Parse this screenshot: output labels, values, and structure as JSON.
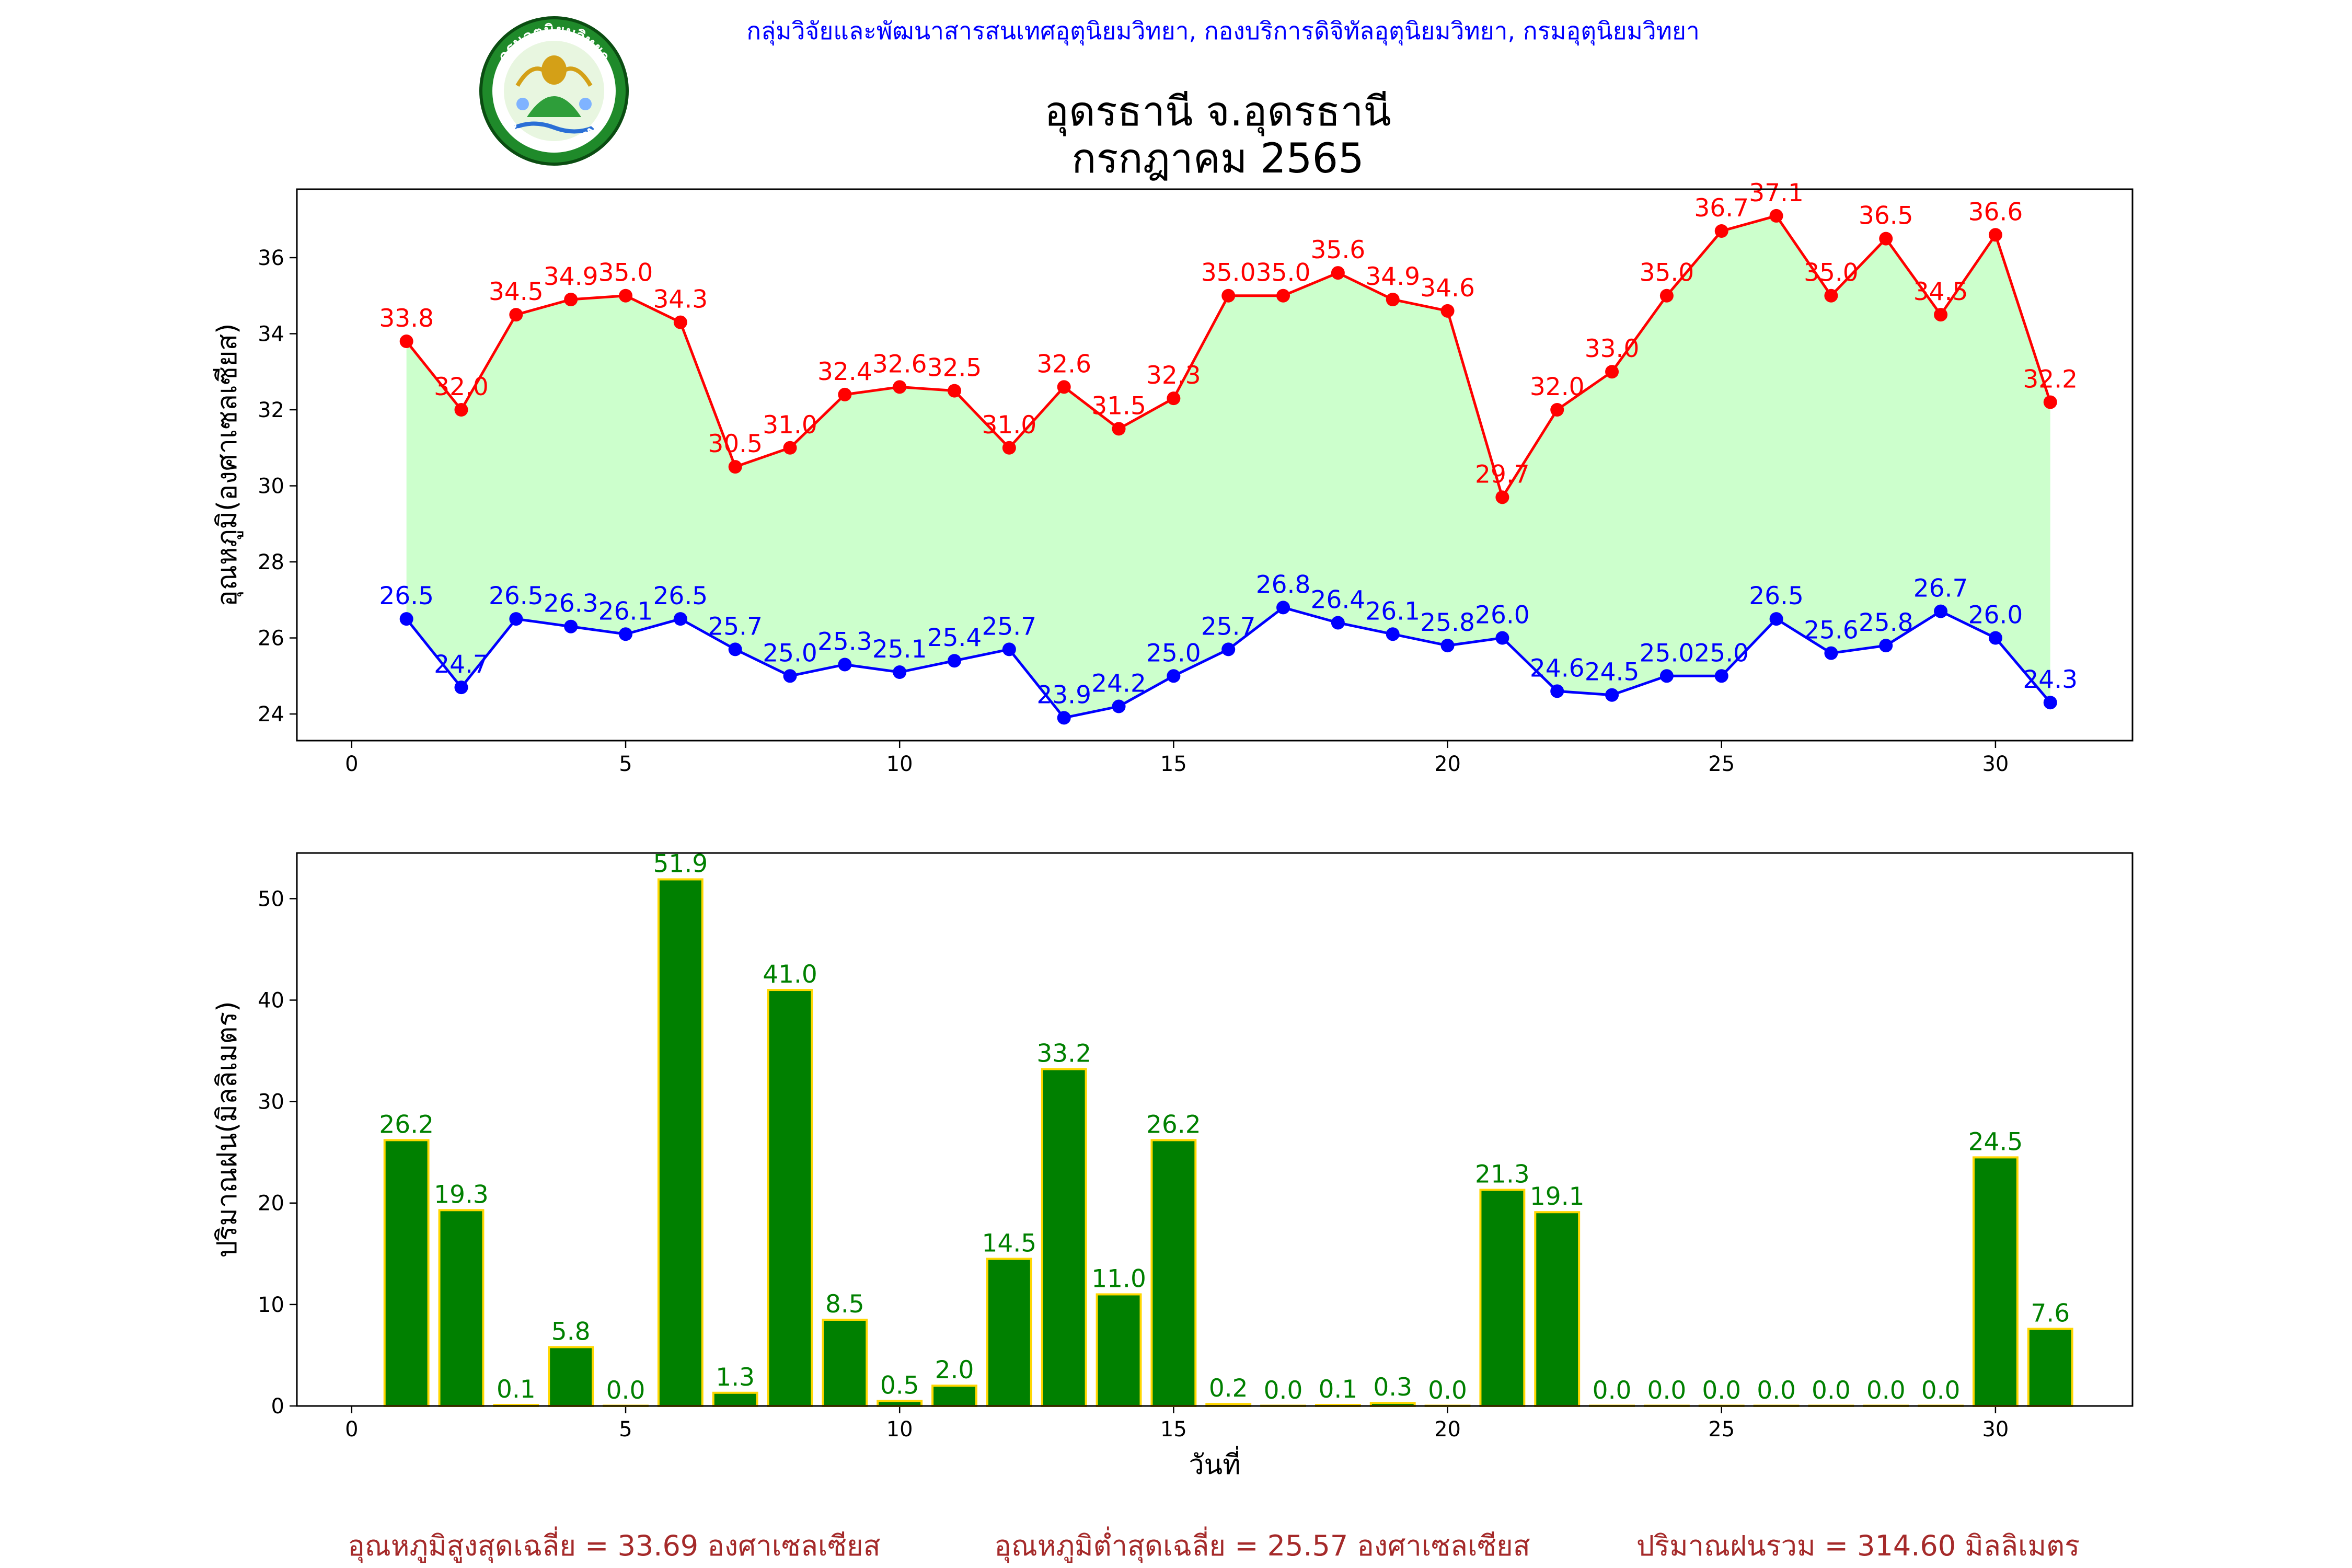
{
  "header": {
    "credit": "กลุ่มวิจัยและพัฒนาสารสนเทศอุตุนิยมวิทยา, กองบริการดิจิทัลอุตุนิยมวิทยา, กรมอุตุนิยมวิทยา",
    "credit_color": "#0000ff",
    "logo": {
      "icon": "meteorological-department-seal-icon",
      "top_text": "กรมอุตุนิยมวิทยา",
      "bottom_text": "METEOROLOGICAL DEPARTMENT"
    }
  },
  "title": {
    "line1": "อุดรธานี จ.อุดรธานี",
    "line2": "กรกฎาคม 2565"
  },
  "chart_data": [
    {
      "type": "line",
      "ylabel": "อุณหภูมิ(องศาเซลเซียส)",
      "xlim": [
        -1,
        32.5
      ],
      "ylim": [
        23.3,
        37.8
      ],
      "xticks": [
        0,
        5,
        10,
        15,
        20,
        25,
        30
      ],
      "yticks": [
        24,
        26,
        28,
        30,
        32,
        34,
        36
      ],
      "grid": false,
      "fill_between_color": "#ccffcc",
      "x": [
        1,
        2,
        3,
        4,
        5,
        6,
        7,
        8,
        9,
        10,
        11,
        12,
        13,
        14,
        15,
        16,
        17,
        18,
        19,
        20,
        21,
        22,
        23,
        24,
        25,
        26,
        27,
        28,
        29,
        30,
        31
      ],
      "series": [
        {
          "key": "max",
          "color": "#ff0000",
          "values": [
            33.8,
            32.0,
            34.5,
            34.9,
            35.0,
            34.3,
            30.5,
            31.0,
            32.4,
            32.6,
            32.5,
            31.0,
            32.6,
            31.5,
            32.3,
            35.0,
            35.0,
            35.6,
            34.9,
            34.6,
            29.7,
            32.0,
            33.0,
            35.0,
            36.7,
            37.1,
            35.0,
            36.5,
            34.5,
            36.6,
            32.2
          ]
        },
        {
          "key": "min",
          "color": "#0000ff",
          "values": [
            26.5,
            24.7,
            26.5,
            26.3,
            26.1,
            26.5,
            25.7,
            25.0,
            25.3,
            25.1,
            25.4,
            25.7,
            23.9,
            24.2,
            25.0,
            25.7,
            26.8,
            26.4,
            26.1,
            25.8,
            26.0,
            24.6,
            24.5,
            25.0,
            25.0,
            26.5,
            25.6,
            25.8,
            26.7,
            26.0,
            24.3
          ]
        }
      ]
    },
    {
      "type": "bar",
      "xlabel": "วันที่",
      "ylabel": "ปริมาณฝน(มิลลิเมตร)",
      "xlim": [
        -1,
        32.5
      ],
      "ylim": [
        0,
        54.5
      ],
      "xticks": [
        0,
        5,
        10,
        15,
        20,
        25,
        30
      ],
      "yticks": [
        0,
        10,
        20,
        30,
        40,
        50
      ],
      "grid": false,
      "bar_color": "#008000",
      "edge_color": "#ffd700",
      "label_color": "#008000",
      "x": [
        1,
        2,
        3,
        4,
        5,
        6,
        7,
        8,
        9,
        10,
        11,
        12,
        13,
        14,
        15,
        16,
        17,
        18,
        19,
        20,
        21,
        22,
        23,
        24,
        25,
        26,
        27,
        28,
        29,
        30,
        31
      ],
      "values": [
        26.2,
        19.3,
        0.1,
        5.8,
        0.0,
        51.9,
        1.3,
        41.0,
        8.5,
        0.5,
        2.0,
        14.5,
        33.2,
        11.0,
        26.2,
        0.2,
        0.0,
        0.1,
        0.3,
        0.0,
        21.3,
        19.1,
        0.0,
        0.0,
        0.0,
        0.0,
        0.0,
        0.0,
        0.0,
        24.5,
        7.6
      ]
    }
  ],
  "footer": {
    "color": "#a52a2a",
    "avg_max": "อุณหภูมิสูงสุดเฉลี่ย = 33.69 องศาเซลเซียส",
    "avg_min": "อุณหภูมิต่ำสุดเฉลี่ย = 25.57 องศาเซลเซียส",
    "total_rain": "ปริมาณฝนรวม = 314.60 มิลลิเมตร"
  }
}
